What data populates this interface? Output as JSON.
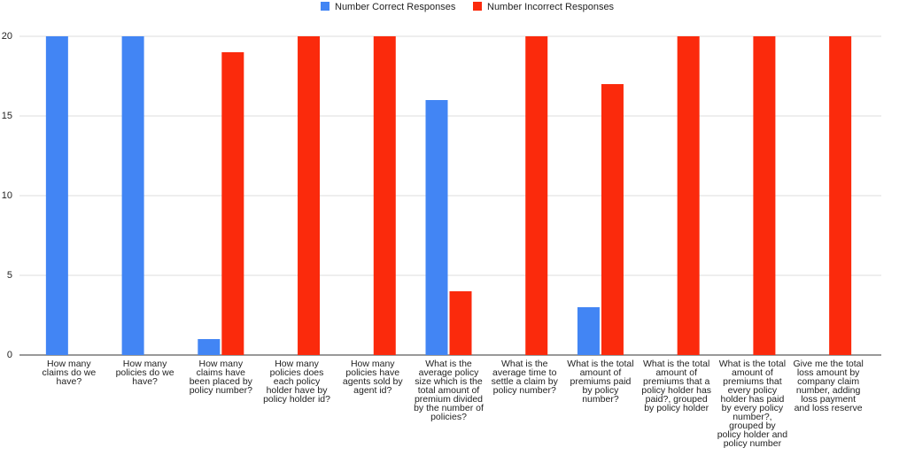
{
  "chart_data": {
    "type": "bar",
    "categories": [
      "How many claims do we have?",
      "How many policies do we have?",
      "How many claims have been placed by policy number?",
      "How many policies does each policy holder have by policy holder id?",
      "How many policies have agents sold by agent id?",
      "What is the average policy size which is the total amount of premium divided by the number of policies?",
      "What is the average time to settle a claim by policy number?",
      "What is the total amount of premiums paid by policy number?",
      "What is the total amount of premiums that a policy holder has paid?, grouped by policy holder",
      "What is the total amount of premiums that every policy holder has paid by every policy number?, grouped by policy holder and policy number",
      "Give me the total loss amount by company claim number, adding loss payment and loss reserve"
    ],
    "series": [
      {
        "name": "Number Correct Responses",
        "color": "#4285f4",
        "values": [
          20,
          20,
          1,
          0,
          0,
          16,
          0,
          3,
          0,
          0,
          0
        ]
      },
      {
        "name": "Number Incorrect Responses",
        "color": "#fb2a0c",
        "values": [
          0,
          0,
          19,
          20,
          20,
          4,
          20,
          17,
          20,
          20,
          20
        ]
      }
    ],
    "ylim": [
      0,
      20
    ],
    "yticks": [
      0,
      5,
      10,
      15,
      20
    ],
    "grid": true,
    "legend": "top"
  }
}
